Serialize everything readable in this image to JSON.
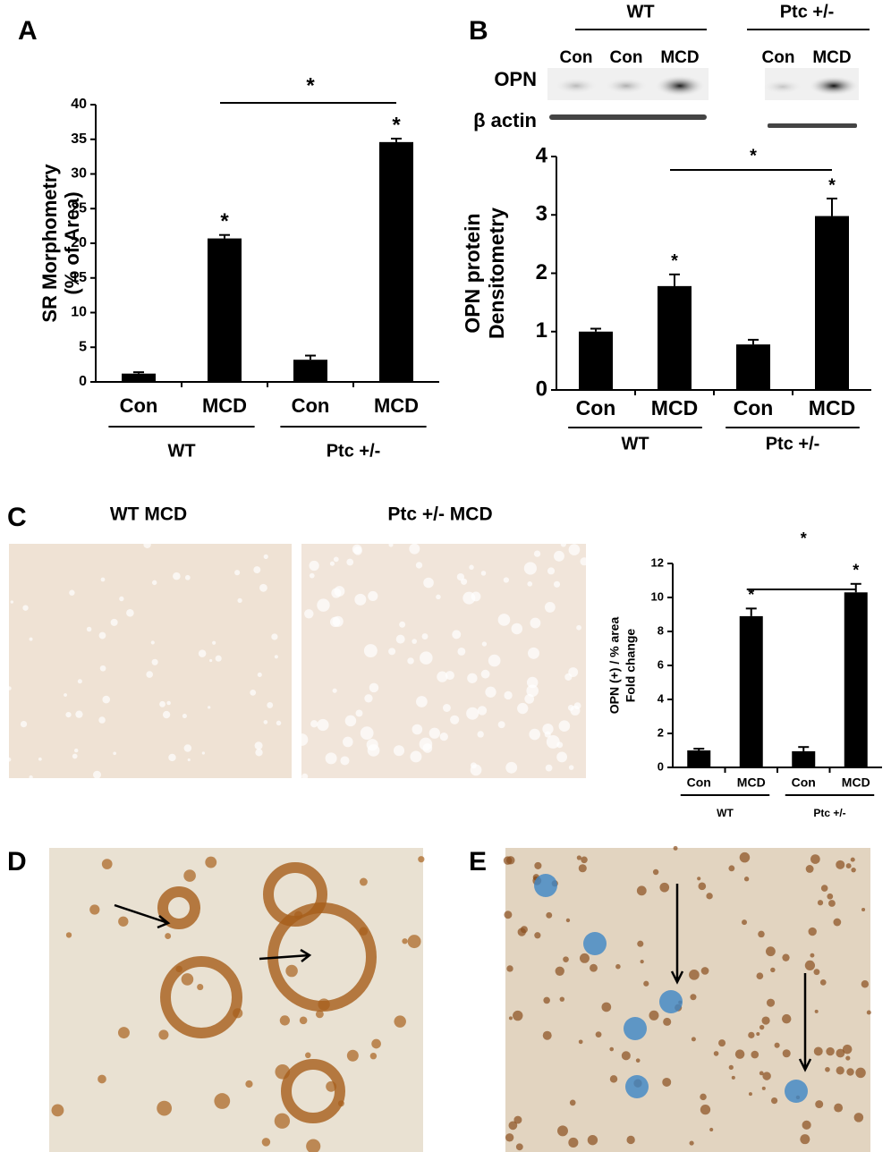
{
  "panels": [
    "A",
    "B",
    "C",
    "D",
    "E"
  ],
  "blot": {
    "groups": [
      "WT",
      "Ptc +/-"
    ],
    "lanes": [
      "Con",
      "Con",
      "MCD",
      "Con",
      "MCD"
    ],
    "rows": [
      "OPN",
      "β actin"
    ]
  },
  "micrographs": [
    "WT MCD",
    "Ptc +/- MCD"
  ],
  "chart_data": [
    {
      "type": "bar",
      "y_label": [
        "SR Morphometry",
        "(% of Area)"
      ],
      "categories": [
        "Con",
        "MCD",
        "Con",
        "MCD"
      ],
      "group_labels": [
        "WT",
        "Ptc +/-"
      ],
      "values": [
        1.2,
        20.7,
        3.2,
        34.6
      ],
      "errors": [
        0.2,
        0.5,
        0.6,
        0.5
      ],
      "significance": [
        null,
        "*",
        null,
        "*"
      ],
      "bracket_label": "*",
      "color": "#000000",
      "ylim": [
        0,
        40
      ],
      "yticks": [
        0,
        5,
        10,
        15,
        20,
        25,
        30,
        35,
        40
      ]
    },
    {
      "type": "bar",
      "y_label": [
        "OPN protein",
        "Densitometry"
      ],
      "categories": [
        "Con",
        "MCD",
        "Con",
        "MCD"
      ],
      "group_labels": [
        "WT",
        "Ptc +/-"
      ],
      "values": [
        1.0,
        1.78,
        0.78,
        2.98
      ],
      "errors": [
        0.05,
        0.2,
        0.08,
        0.3
      ],
      "significance": [
        null,
        "*",
        null,
        "*"
      ],
      "bracket_label": "*",
      "color": "#000000",
      "ylim": [
        0,
        4
      ],
      "yticks": [
        0,
        1,
        2,
        3,
        4
      ]
    },
    {
      "type": "bar",
      "y_label": [
        "OPN (+) / % area",
        "Fold change"
      ],
      "categories": [
        "Con",
        "MCD",
        "Con",
        "MCD"
      ],
      "group_labels": [
        "WT",
        "Ptc +/-"
      ],
      "values": [
        1.0,
        8.9,
        0.95,
        10.3
      ],
      "errors": [
        0.1,
        0.45,
        0.25,
        0.5
      ],
      "significance": [
        null,
        "*",
        null,
        "*"
      ],
      "bracket_label": "*",
      "color": "#000000",
      "ylim": [
        0,
        12
      ],
      "yticks": [
        0,
        2,
        4,
        6,
        8,
        10,
        12
      ]
    }
  ]
}
